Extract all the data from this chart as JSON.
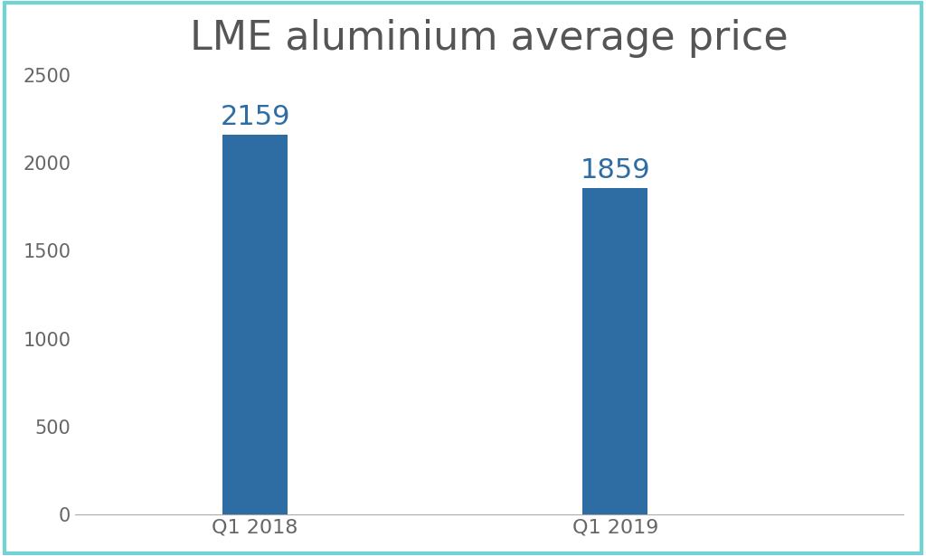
{
  "categories": [
    "Q1 2018",
    "Q1 2019"
  ],
  "values": [
    2159,
    1859
  ],
  "bar_color": "#2E6DA4",
  "label_color": "#2E6DA4",
  "title": "LME aluminium average price",
  "title_color": "#555555",
  "title_fontsize": 32,
  "label_fontsize": 22,
  "tick_label_fontsize": 15,
  "ylim": [
    0,
    2500
  ],
  "yticks": [
    0,
    500,
    1000,
    1500,
    2000,
    2500
  ],
  "background_color": "#ffffff",
  "axes_background": "#ffffff",
  "bar_width": 0.18,
  "x_positions": [
    1,
    2
  ],
  "xlim": [
    0.5,
    2.8
  ],
  "border_color": "#70d4d4",
  "border_linewidth": 3
}
